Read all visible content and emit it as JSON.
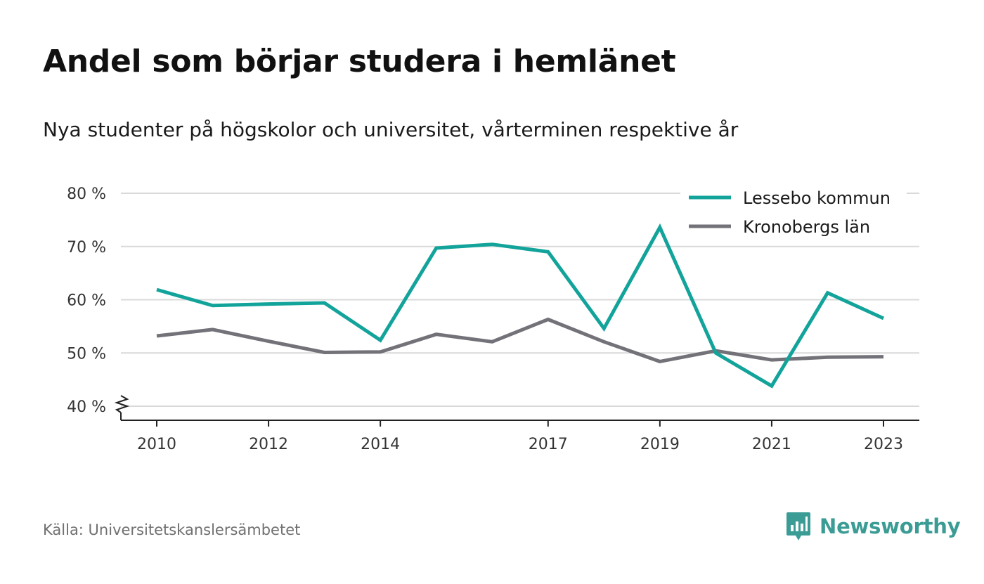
{
  "chart_data": {
    "type": "line",
    "title": "Andel som börjar studera i hemlänet",
    "subtitle": "Nya studenter på högskolor och universitet, vårterminen respektive år",
    "x": [
      2010,
      2011,
      2012,
      2013,
      2014,
      2015,
      2016,
      2017,
      2018,
      2019,
      2020,
      2021,
      2022,
      2023
    ],
    "x_ticks": [
      "2010",
      "2012",
      "2014",
      "2017",
      "2019",
      "2021",
      "2023"
    ],
    "y_ticks": [
      "40 %",
      "50 %",
      "60 %",
      "70 %",
      "80 %"
    ],
    "ylim": [
      40,
      80
    ],
    "y_axis_broken": true,
    "grid": "horizontal",
    "legend_position": "top-right",
    "series": [
      {
        "name": "Lessebo kommun",
        "color": "#12a39a",
        "values": [
          61.9,
          58.9,
          59.2,
          59.4,
          52.4,
          69.7,
          70.4,
          69.0,
          54.6,
          73.6,
          50.0,
          43.8,
          61.3,
          56.5
        ]
      },
      {
        "name": "Kronobergs län",
        "color": "#737279",
        "values": [
          53.2,
          54.4,
          52.2,
          50.1,
          50.2,
          53.5,
          52.1,
          56.3,
          52.1,
          48.4,
          50.4,
          48.7,
          49.2,
          49.3
        ]
      }
    ]
  },
  "footer": {
    "source": "Källa: Universitetskanslersämbetet",
    "brand": "Newsworthy",
    "brand_color": "#3a9c94",
    "brand_icon": "newsworthy-logo-icon"
  }
}
